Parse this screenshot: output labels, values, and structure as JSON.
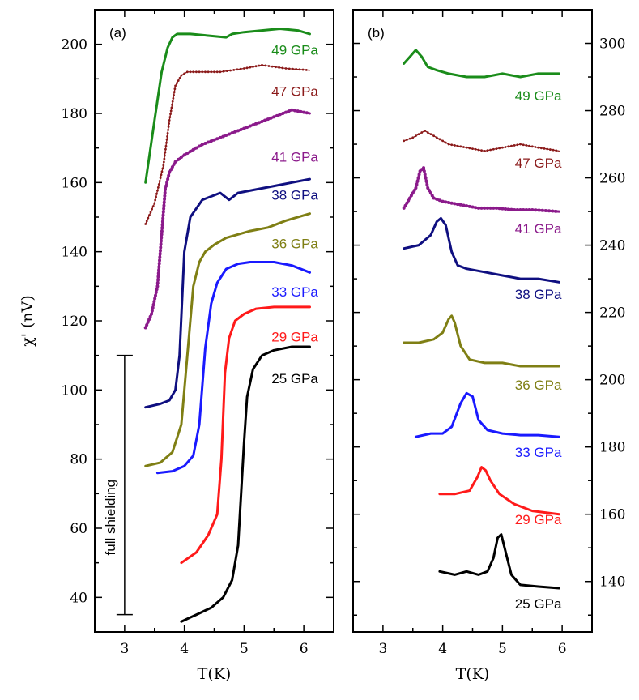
{
  "chart_data": [
    {
      "panel_label": "(a)",
      "type": "line",
      "xlabel": "T(K)",
      "ylabel": "χ' (nV)",
      "xlim": [
        2.5,
        6.5
      ],
      "ylim": [
        30,
        210
      ],
      "xticks": [
        3,
        4,
        5,
        6
      ],
      "yticks": [
        40,
        60,
        80,
        100,
        120,
        140,
        160,
        180,
        200
      ],
      "y_axis_side": "left",
      "annotation": {
        "text": "full shielding",
        "x": 3.0,
        "y_range": [
          35,
          110
        ]
      },
      "series": [
        {
          "name": "49 GPa",
          "color": "#1a8c1a",
          "style": "thick",
          "x": [
            3.35,
            3.5,
            3.62,
            3.72,
            3.8,
            3.88,
            3.95,
            4.1,
            4.4,
            4.7,
            4.8,
            5.0,
            5.3,
            5.6,
            5.9,
            6.1
          ],
          "y": [
            160,
            178,
            192,
            199,
            202,
            203,
            203,
            203,
            202.5,
            202,
            203,
            203.5,
            204,
            204.5,
            204,
            203
          ]
        },
        {
          "name": "47 GPa",
          "color": "#8b1a1a",
          "style": "thin",
          "x": [
            3.35,
            3.5,
            3.65,
            3.75,
            3.85,
            3.95,
            4.05,
            4.3,
            4.6,
            5.0,
            5.3,
            5.7,
            6.1
          ],
          "y": [
            148,
            154,
            165,
            178,
            188,
            191,
            192,
            192,
            192,
            193,
            194,
            193,
            192.5
          ]
        },
        {
          "name": "41 GPa",
          "color": "#8b1a8b",
          "style": "dotted",
          "x": [
            3.35,
            3.45,
            3.55,
            3.62,
            3.68,
            3.75,
            3.85,
            4.0,
            4.3,
            4.6,
            4.9,
            5.2,
            5.5,
            5.8,
            6.1
          ],
          "y": [
            118,
            122,
            130,
            145,
            158,
            163,
            166,
            168,
            171,
            173,
            175,
            177,
            179,
            181,
            180
          ]
        },
        {
          "name": "38 GPa",
          "color": "#0f0f80",
          "style": "thick",
          "x": [
            3.35,
            3.6,
            3.75,
            3.85,
            3.92,
            4.0,
            4.1,
            4.3,
            4.6,
            4.75,
            4.9,
            5.2,
            5.5,
            5.8,
            6.1
          ],
          "y": [
            95,
            96,
            97,
            100,
            110,
            140,
            150,
            155,
            157,
            155,
            157,
            158,
            159,
            160,
            161
          ]
        },
        {
          "name": "36 GPa",
          "color": "#7f7f14",
          "style": "thick",
          "x": [
            3.35,
            3.6,
            3.8,
            3.95,
            4.05,
            4.15,
            4.25,
            4.35,
            4.5,
            4.7,
            4.9,
            5.1,
            5.4,
            5.7,
            6.1
          ],
          "y": [
            78,
            79,
            82,
            90,
            110,
            130,
            137,
            140,
            142,
            144,
            145,
            146,
            147,
            149,
            151
          ]
        },
        {
          "name": "33 GPa",
          "color": "#1a1aff",
          "style": "thick",
          "x": [
            3.55,
            3.8,
            4.0,
            4.15,
            4.25,
            4.35,
            4.45,
            4.55,
            4.7,
            4.9,
            5.1,
            5.5,
            5.8,
            6.1
          ],
          "y": [
            76,
            76.5,
            78,
            81,
            90,
            112,
            125,
            131,
            135,
            136.5,
            137,
            137,
            136,
            134
          ]
        },
        {
          "name": "29 GPa",
          "color": "#ff1a1a",
          "style": "thick",
          "x": [
            3.95,
            4.2,
            4.4,
            4.55,
            4.62,
            4.68,
            4.75,
            4.85,
            5.0,
            5.2,
            5.5,
            5.8,
            6.1
          ],
          "y": [
            50,
            53,
            58,
            64,
            80,
            105,
            115,
            120,
            122,
            123.5,
            124,
            124,
            124
          ]
        },
        {
          "name": "25 GPa",
          "color": "#000000",
          "style": "thick",
          "x": [
            3.95,
            4.2,
            4.45,
            4.65,
            4.8,
            4.9,
            4.95,
            5.0,
            5.05,
            5.15,
            5.3,
            5.5,
            5.8,
            6.1
          ],
          "y": [
            33,
            35,
            37,
            40,
            45,
            55,
            70,
            85,
            98,
            106,
            110,
            111.5,
            112.5,
            112.5
          ]
        }
      ],
      "labels": [
        {
          "text": "49 GPa",
          "color": "#1a8c1a",
          "x": 5.85,
          "y": 197
        },
        {
          "text": "47 GPa",
          "color": "#8b1a1a",
          "x": 5.85,
          "y": 185
        },
        {
          "text": "41 GPa",
          "color": "#8b1a8b",
          "x": 5.85,
          "y": 166
        },
        {
          "text": "38 GPa",
          "color": "#0f0f80",
          "x": 5.85,
          "y": 155
        },
        {
          "text": "36 GPa",
          "color": "#7f7f14",
          "x": 5.85,
          "y": 141
        },
        {
          "text": "33 GPa",
          "color": "#1a1aff",
          "x": 5.85,
          "y": 127
        },
        {
          "text": "29 GPa",
          "color": "#ff1a1a",
          "x": 5.85,
          "y": 114
        },
        {
          "text": "25 GPa",
          "color": "#000000",
          "x": 5.85,
          "y": 102
        }
      ]
    },
    {
      "panel_label": "(b)",
      "type": "line",
      "xlabel": "T(K)",
      "ylabel": "",
      "xlim": [
        2.5,
        6.5
      ],
      "ylim": [
        125,
        310
      ],
      "xticks": [
        3,
        4,
        5,
        6
      ],
      "yticks": [
        140,
        160,
        180,
        200,
        220,
        240,
        260,
        280,
        300
      ],
      "y_axis_side": "right",
      "series": [
        {
          "name": "49 GPa",
          "color": "#1a8c1a",
          "style": "thick",
          "x": [
            3.35,
            3.45,
            3.55,
            3.65,
            3.75,
            3.9,
            4.1,
            4.4,
            4.7,
            5.0,
            5.3,
            5.6,
            5.95
          ],
          "y": [
            294,
            296,
            298,
            296,
            293,
            292,
            291,
            290,
            290,
            291,
            290,
            291,
            291
          ]
        },
        {
          "name": "47 GPa",
          "color": "#8b1a1a",
          "style": "thin",
          "x": [
            3.35,
            3.5,
            3.7,
            3.9,
            4.1,
            4.4,
            4.7,
            5.0,
            5.3,
            5.6,
            5.95
          ],
          "y": [
            271,
            272,
            274,
            272,
            270,
            269,
            268,
            269,
            270,
            269,
            268
          ]
        },
        {
          "name": "41 GPa",
          "color": "#8b1a8b",
          "style": "dotted",
          "x": [
            3.35,
            3.45,
            3.55,
            3.62,
            3.68,
            3.75,
            3.85,
            4.0,
            4.3,
            4.6,
            4.9,
            5.2,
            5.5,
            5.95
          ],
          "y": [
            251,
            254,
            257,
            262,
            263,
            257,
            254,
            253,
            252,
            251,
            251,
            250.5,
            250.5,
            250
          ]
        },
        {
          "name": "38 GPa",
          "color": "#0f0f80",
          "style": "thick",
          "x": [
            3.35,
            3.6,
            3.8,
            3.9,
            3.97,
            4.05,
            4.15,
            4.25,
            4.4,
            4.7,
            5.0,
            5.3,
            5.6,
            5.95
          ],
          "y": [
            239,
            240,
            243,
            247,
            248,
            246,
            238,
            234,
            233,
            232,
            231,
            230,
            230,
            229
          ]
        },
        {
          "name": "36 GPa",
          "color": "#7f7f14",
          "style": "thick",
          "x": [
            3.35,
            3.6,
            3.85,
            4.0,
            4.1,
            4.15,
            4.2,
            4.3,
            4.45,
            4.7,
            5.0,
            5.3,
            5.6,
            5.95
          ],
          "y": [
            211,
            211,
            212,
            214,
            218,
            219,
            217,
            210,
            206,
            205,
            205,
            204,
            204,
            204
          ]
        },
        {
          "name": "33 GPa",
          "color": "#1a1aff",
          "style": "thick",
          "x": [
            3.55,
            3.8,
            4.0,
            4.15,
            4.3,
            4.4,
            4.5,
            4.6,
            4.75,
            5.0,
            5.3,
            5.6,
            5.95
          ],
          "y": [
            183,
            184,
            184,
            186,
            193,
            196,
            195,
            188,
            185,
            184,
            183.5,
            183.5,
            183
          ]
        },
        {
          "name": "29 GPa",
          "color": "#ff1a1a",
          "style": "thick",
          "x": [
            3.95,
            4.2,
            4.45,
            4.58,
            4.65,
            4.72,
            4.8,
            4.95,
            5.2,
            5.5,
            5.95
          ],
          "y": [
            166,
            166,
            167,
            171,
            174,
            173,
            170,
            166,
            163,
            161,
            160
          ]
        },
        {
          "name": "25 GPa",
          "color": "#000000",
          "style": "thick",
          "x": [
            3.95,
            4.2,
            4.4,
            4.6,
            4.75,
            4.85,
            4.92,
            4.98,
            5.05,
            5.15,
            5.3,
            5.6,
            5.95
          ],
          "y": [
            143,
            142,
            143,
            142,
            143,
            147,
            153,
            154,
            149,
            142,
            139,
            138.5,
            138
          ]
        }
      ],
      "labels": [
        {
          "text": "49 GPa",
          "color": "#1a8c1a",
          "x": 5.6,
          "y": 283
        },
        {
          "text": "47 GPa",
          "color": "#8b1a1a",
          "x": 5.6,
          "y": 263
        },
        {
          "text": "41 GPa",
          "color": "#8b1a8b",
          "x": 5.6,
          "y": 243.5
        },
        {
          "text": "38 GPa",
          "color": "#0f0f80",
          "x": 5.6,
          "y": 224
        },
        {
          "text": "36 GPa",
          "color": "#7f7f14",
          "x": 5.6,
          "y": 197
        },
        {
          "text": "33 GPa",
          "color": "#1a1aff",
          "x": 5.6,
          "y": 177
        },
        {
          "text": "29 GPa",
          "color": "#ff1a1a",
          "x": 5.6,
          "y": 157
        },
        {
          "text": "25 GPa",
          "color": "#000000",
          "x": 5.6,
          "y": 132
        }
      ]
    }
  ]
}
